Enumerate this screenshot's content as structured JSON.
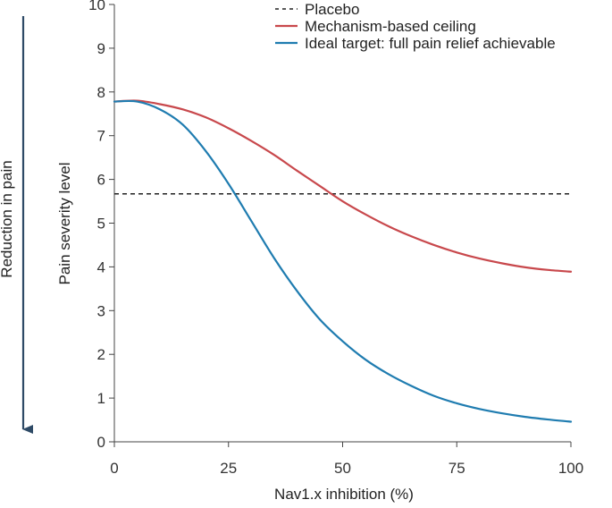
{
  "chart_data": {
    "type": "line",
    "title": "",
    "xlabel": "Nav1.x inhibition (%)",
    "ylabel": "Pain severity level",
    "side_annotation": "Reduction in pain",
    "xlim": [
      0,
      100
    ],
    "ylim": [
      0,
      10
    ],
    "xticks": [
      0,
      25,
      50,
      75,
      100
    ],
    "yticks": [
      0,
      1,
      2,
      3,
      4,
      5,
      6,
      7,
      8,
      9,
      10
    ],
    "grid": false,
    "legend_position": "top-right",
    "series": [
      {
        "name": "Placebo",
        "color": "#222222",
        "style": "dashed",
        "x": [
          0,
          100
        ],
        "y": [
          5.67,
          5.67
        ]
      },
      {
        "name": "Mechanism-based ceiling",
        "color": "#c8484c",
        "style": "solid",
        "x": [
          0,
          5,
          10,
          15,
          20,
          25,
          30,
          35,
          40,
          45,
          50,
          55,
          60,
          65,
          70,
          75,
          80,
          85,
          90,
          95,
          100
        ],
        "y": [
          7.78,
          7.8,
          7.72,
          7.6,
          7.42,
          7.17,
          6.88,
          6.56,
          6.2,
          5.85,
          5.5,
          5.2,
          4.93,
          4.7,
          4.5,
          4.33,
          4.19,
          4.08,
          3.99,
          3.93,
          3.89
        ]
      },
      {
        "name": "Ideal target: full pain relief achievable",
        "color": "#1f7cb0",
        "style": "solid",
        "x": [
          0,
          5,
          10,
          15,
          20,
          25,
          30,
          35,
          40,
          45,
          50,
          55,
          60,
          65,
          70,
          75,
          80,
          85,
          90,
          95,
          100
        ],
        "y": [
          7.78,
          7.78,
          7.6,
          7.25,
          6.65,
          5.9,
          5.05,
          4.2,
          3.45,
          2.8,
          2.3,
          1.88,
          1.55,
          1.28,
          1.05,
          0.88,
          0.75,
          0.65,
          0.57,
          0.51,
          0.46
        ]
      }
    ]
  }
}
